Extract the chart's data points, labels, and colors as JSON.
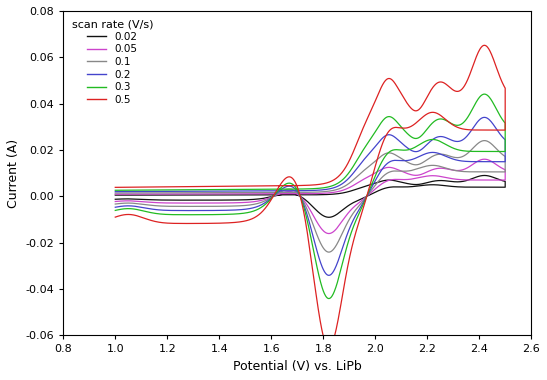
{
  "title": "",
  "xlabel": "Potential (V) vs. LiPb",
  "ylabel": "Current (A)",
  "xlim": [
    0.8,
    2.6
  ],
  "ylim": [
    -0.06,
    0.08
  ],
  "xticks": [
    0.8,
    1.0,
    1.2,
    1.4,
    1.6,
    1.8,
    2.0,
    2.2,
    2.4,
    2.6
  ],
  "yticks": [
    -0.06,
    -0.04,
    -0.02,
    0.0,
    0.02,
    0.04,
    0.06,
    0.08
  ],
  "scan_rates": [
    0.02,
    0.05,
    0.1,
    0.2,
    0.3,
    0.5
  ],
  "colors": [
    "#111111",
    "#cc44cc",
    "#888888",
    "#4444cc",
    "#22bb22",
    "#dd2222"
  ],
  "legend_title": "scan rate (V/s)",
  "legend_labels": [
    "0.02",
    "0.05",
    "0.1",
    "0.2",
    "0.3",
    "0.5"
  ],
  "background_color": "#ffffff",
  "figsize": [
    5.47,
    3.8
  ],
  "dpi": 100,
  "scales": [
    0.18,
    0.32,
    0.48,
    0.68,
    0.88,
    1.3
  ]
}
